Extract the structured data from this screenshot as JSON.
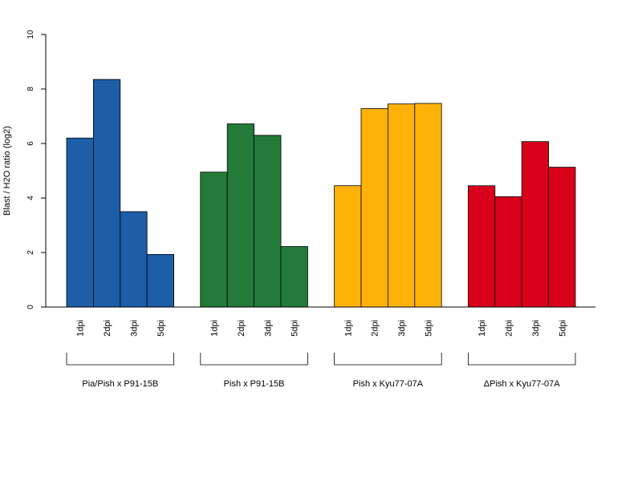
{
  "chart_data": {
    "type": "bar",
    "title": "",
    "xlabel": "",
    "ylabel": "Blast / H2O ratio (log2)",
    "ylim": [
      0,
      10
    ],
    "yticks": [
      0,
      2,
      4,
      6,
      8,
      10
    ],
    "categories": [
      "1dpi",
      "2dpi",
      "3dpi",
      "5dpi"
    ],
    "groups": [
      {
        "label": "Pia/Pish x P91-15B",
        "color": "#1c5ea8",
        "values": [
          6.2,
          8.35,
          3.5,
          1.93
        ]
      },
      {
        "label": "Pish x P91-15B",
        "color": "#227b38",
        "values": [
          4.95,
          6.72,
          6.3,
          2.22
        ]
      },
      {
        "label": "Pish x Kyu77-07A",
        "color": "#fdb20a",
        "values": [
          4.45,
          7.28,
          7.45,
          7.47
        ]
      },
      {
        "label": "ΔPish x Kyu77-07A",
        "color": "#d9001b",
        "values": [
          4.45,
          4.05,
          6.07,
          5.13
        ]
      }
    ],
    "grid": false,
    "legend": "none"
  }
}
